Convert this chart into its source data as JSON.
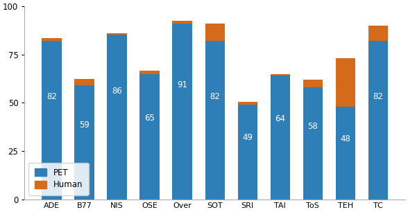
{
  "categories": [
    "ADE",
    "B77",
    "NIS",
    "OSE",
    "Over",
    "SOT",
    "SRI",
    "TAI",
    "ToS",
    "TEH",
    "TC"
  ],
  "pet_values": [
    82,
    59,
    86,
    65,
    91,
    82,
    49,
    64,
    58,
    48,
    82
  ],
  "human_values": [
    83.5,
    62.5,
    85.5,
    66.5,
    92.5,
    91,
    50.5,
    65,
    62,
    73,
    90
  ],
  "bar_color": "#2e7fb8",
  "human_color": "#d46a1a",
  "text_color": "#ffffff",
  "ylim": [
    0,
    100
  ],
  "yticks": [
    0,
    25,
    50,
    75,
    100
  ],
  "bar_width": 0.6,
  "font_size": 8.5
}
